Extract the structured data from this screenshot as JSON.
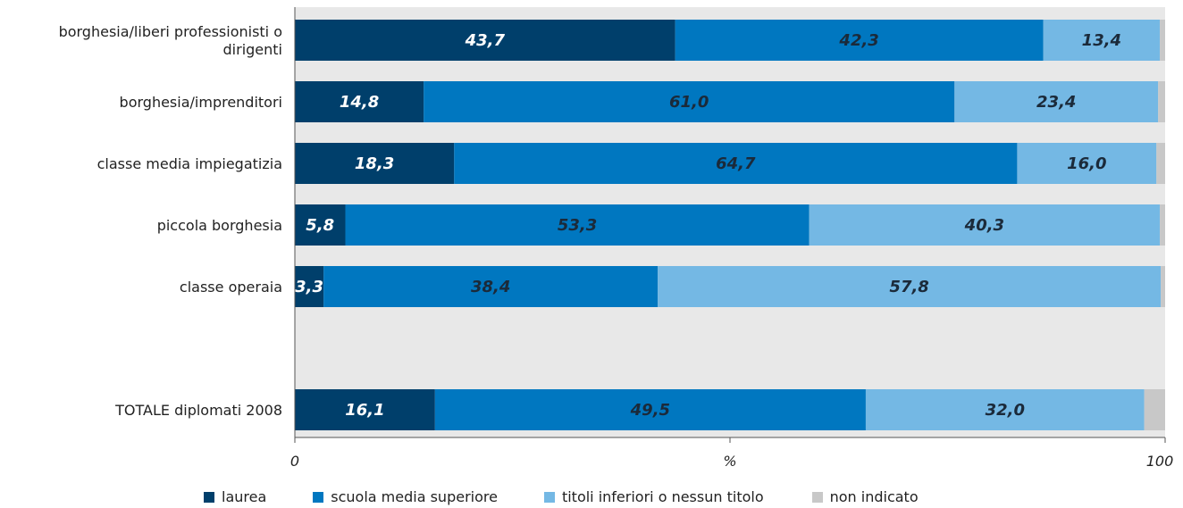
{
  "chart_data": {
    "type": "bar",
    "orientation": "horizontal",
    "stacked": true,
    "categories": [
      [
        "borghesia/liberi professionisti o",
        "dirigenti"
      ],
      [
        "borghesia/imprenditori"
      ],
      [
        "classe media impiegatizia"
      ],
      [
        "piccola borghesia"
      ],
      [
        "classe operaia"
      ],
      [],
      [
        "TOTALE diplomati 2008"
      ]
    ],
    "series": [
      {
        "name": "laurea",
        "color": "#003f6b",
        "label_color": "#ffffff",
        "values": [
          43.7,
          14.8,
          18.3,
          5.8,
          3.3,
          null,
          16.1
        ],
        "labels": [
          "43,7",
          "14,8",
          "18,3",
          "5,8",
          "3,3",
          "",
          "16,1"
        ]
      },
      {
        "name": "scuola media superiore",
        "color": "#0077c0",
        "label_color": "#1b2a3a",
        "values": [
          42.3,
          61.0,
          64.7,
          53.3,
          38.4,
          null,
          49.5
        ],
        "labels": [
          "42,3",
          "61,0",
          "64,7",
          "53,3",
          "38,4",
          "",
          "49,5"
        ]
      },
      {
        "name": "titoli inferiori o nessun titolo",
        "color": "#74b8e4",
        "label_color": "#1b2a3a",
        "values": [
          13.4,
          23.4,
          16.0,
          40.3,
          57.8,
          null,
          32.0
        ],
        "labels": [
          "13,4",
          "23,4",
          "16,0",
          "40,3",
          "57,8",
          "",
          "32,0"
        ]
      },
      {
        "name": "non indicato",
        "color": "#c8c8c8",
        "label_color": "#1b2a3a",
        "values": [
          0.6,
          0.8,
          1.0,
          0.6,
          0.5,
          null,
          2.4
        ],
        "labels": [
          "",
          "",
          "",
          "",
          "",
          "",
          ""
        ]
      }
    ],
    "xlim": [
      0,
      100
    ],
    "xticks": [
      0,
      50,
      100
    ],
    "xtick_labels": [
      "0",
      "",
      "100"
    ],
    "xlabel": "%",
    "plot_background": "#e8e8e8",
    "legend_position": "bottom"
  }
}
